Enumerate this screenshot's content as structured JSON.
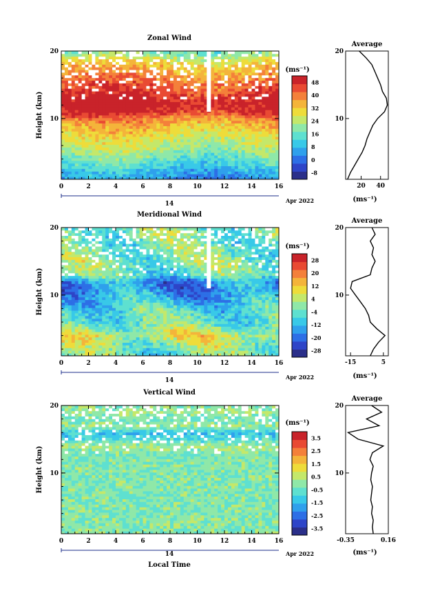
{
  "chart_data": [
    {
      "type": "heatmap",
      "title": "Zonal Wind",
      "ylabel": "Height (km)",
      "xlabel": "",
      "xlim": [
        0,
        16
      ],
      "ylim": [
        1,
        20
      ],
      "x_ticks": [
        "0",
        "2",
        "4",
        "6",
        "8",
        "10",
        "12",
        "14",
        "16"
      ],
      "y_ticks": [
        "10",
        "20"
      ],
      "date_label": "14",
      "date_suffix": "Apr 2022",
      "colorbar": {
        "unit": "(ms⁻¹)",
        "ticks": [
          "48",
          "40",
          "32",
          "24",
          "16",
          "8",
          "0",
          "-8"
        ],
        "min": -8,
        "max": 48
      },
      "profile": {
        "title": "Average",
        "xlabel": "(ms⁻¹)",
        "xlim": [
          4,
          48
        ],
        "x_ticks": [
          "20",
          "40"
        ],
        "heights": [
          1,
          2,
          3,
          4,
          5,
          6,
          7,
          8,
          9,
          10,
          11,
          12,
          13,
          14,
          15,
          16,
          17,
          18,
          19,
          20
        ],
        "values": [
          6,
          9,
          13,
          17,
          21,
          24,
          26,
          29,
          32,
          37,
          44,
          47,
          46,
          42,
          40,
          37,
          34,
          31,
          25,
          18
        ]
      }
    },
    {
      "type": "heatmap",
      "title": "Meridional Wind",
      "ylabel": "Height (km)",
      "xlabel": "",
      "xlim": [
        0,
        16
      ],
      "ylim": [
        1,
        20
      ],
      "x_ticks": [
        "0",
        "2",
        "4",
        "6",
        "8",
        "10",
        "12",
        "14",
        "16"
      ],
      "y_ticks": [
        "10",
        "20"
      ],
      "date_label": "14",
      "date_suffix": "Apr 2022",
      "colorbar": {
        "unit": "(ms⁻¹)",
        "ticks": [
          "28",
          "20",
          "12",
          "4",
          "-4",
          "-12",
          "-20",
          "-28"
        ],
        "min": -28,
        "max": 28
      },
      "profile": {
        "title": "Average",
        "xlabel": "(ms⁻¹)",
        "xlim": [
          -18,
          8
        ],
        "x_ticks": [
          "-15",
          "5"
        ],
        "heights": [
          1,
          2,
          3,
          4,
          5,
          6,
          7,
          8,
          9,
          10,
          11,
          12,
          13,
          14,
          15,
          16,
          17,
          18,
          19,
          20
        ],
        "values": [
          -3,
          -1,
          2,
          6,
          1,
          -3,
          -4,
          -6,
          -9,
          -12,
          -15,
          -14,
          -3,
          -2,
          0,
          -2,
          -1,
          -3,
          0,
          -2
        ]
      }
    },
    {
      "type": "heatmap",
      "title": "Vertical Wind",
      "ylabel": "Height (km)",
      "xlabel": "Local Time",
      "xlim": [
        0,
        16
      ],
      "ylim": [
        1,
        20
      ],
      "x_ticks": [
        "0",
        "2",
        "4",
        "6",
        "8",
        "10",
        "12",
        "14",
        "16"
      ],
      "y_ticks": [
        "10",
        "20"
      ],
      "date_label": "14",
      "date_suffix": "Apr 2022",
      "colorbar": {
        "unit": "(ms⁻¹)",
        "ticks": [
          "3.5",
          "2.5",
          "1.5",
          "0.5",
          "-0.5",
          "-1.5",
          "-2.5",
          "-3.5"
        ],
        "min": -4,
        "max": 4
      },
      "profile": {
        "title": "Average",
        "xlabel": "(ms⁻¹)",
        "xlim": [
          -0.35,
          0.16
        ],
        "x_ticks": [
          "-0.35",
          "0.16"
        ],
        "heights": [
          1,
          2,
          3,
          4,
          5,
          6,
          7,
          8,
          9,
          10,
          11,
          12,
          13,
          14,
          15,
          16,
          17,
          18,
          19,
          20
        ],
        "values": [
          -0.02,
          -0.03,
          -0.02,
          -0.04,
          -0.03,
          -0.05,
          -0.04,
          -0.03,
          -0.05,
          -0.04,
          -0.02,
          -0.06,
          -0.03,
          0.1,
          -0.2,
          -0.32,
          0.05,
          -0.1,
          0.08,
          -0.04
        ]
      }
    }
  ]
}
